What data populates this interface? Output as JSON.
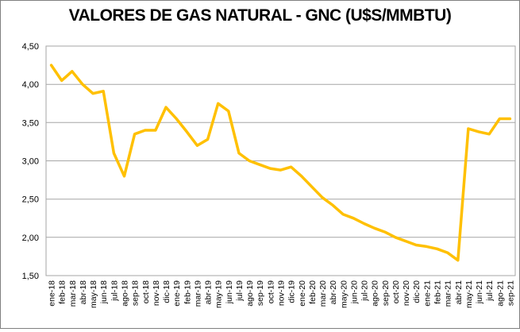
{
  "chart_data": {
    "type": "line",
    "title": "VALORES DE GAS NATURAL - GNC (U$S/MMBTU)",
    "categories": [
      "ene-18",
      "feb-18",
      "mar-18",
      "abr-18",
      "may-18",
      "jun-18",
      "jul-18",
      "ago-18",
      "sep-18",
      "oct-18",
      "nov-18",
      "dic-18",
      "ene-19",
      "feb-19",
      "mar-19",
      "abr-19",
      "may-19",
      "jun-19",
      "jul-19",
      "ago-19",
      "sep-19",
      "oct-19",
      "nov-19",
      "dic-19",
      "ene-20",
      "feb-20",
      "mar-20",
      "abr-20",
      "may-20",
      "jun-20",
      "jul-20",
      "ago-20",
      "sep-20",
      "oct-20",
      "nov-20",
      "dic-20",
      "ene-21",
      "feb-21",
      "mar-21",
      "abr-21",
      "may-21",
      "jun-21",
      "jul-21",
      "ago-21",
      "sep-21"
    ],
    "values": [
      4.25,
      4.05,
      4.17,
      4.0,
      3.88,
      3.91,
      3.1,
      2.8,
      3.35,
      3.4,
      3.4,
      3.7,
      3.55,
      3.38,
      3.2,
      3.28,
      3.75,
      3.65,
      3.1,
      3.0,
      2.95,
      2.9,
      2.88,
      2.92,
      2.8,
      2.66,
      2.52,
      2.42,
      2.3,
      2.25,
      2.18,
      2.12,
      2.07,
      2.0,
      1.95,
      1.9,
      1.88,
      1.85,
      1.8,
      1.7,
      3.42,
      3.38,
      3.35,
      3.55,
      3.55
    ],
    "ylim": [
      1.5,
      4.5
    ],
    "ytick_step": 0.5,
    "ytick_labels": [
      "1,50",
      "2,00",
      "2,50",
      "3,00",
      "3,50",
      "4,00",
      "4,50"
    ],
    "xlabel": "",
    "ylabel": "",
    "grid": true,
    "legend": "none",
    "line_color": "#FFC000",
    "line_width": 3.5,
    "grid_color": "#A6A6A6",
    "axis_text_color": "#000000",
    "background_color": "#FFFFFF",
    "border_color": "#808080"
  }
}
